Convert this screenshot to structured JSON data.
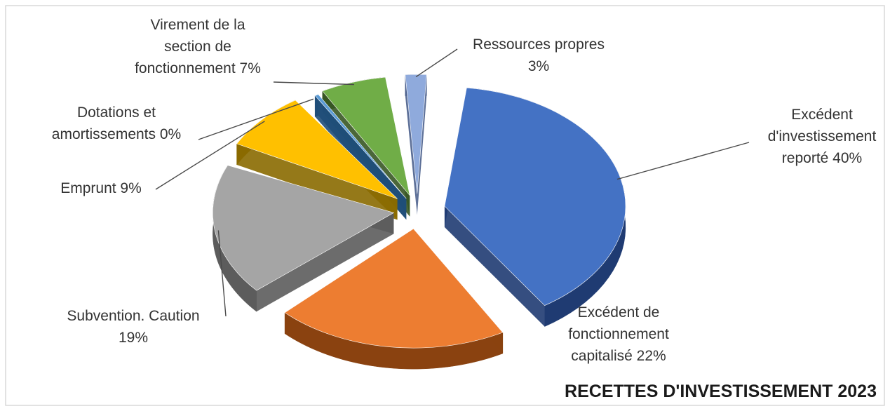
{
  "chart_data": {
    "type": "pie",
    "title": "RECETTES D'INVESTISSEMENT 2023",
    "slices": [
      {
        "label_lines": [
          "Excédent",
          "d'investissement",
          "reporté 40%"
        ],
        "value": 40,
        "color": "#4472C4",
        "dark": "#1f3b72"
      },
      {
        "label_lines": [
          "Excédent de",
          "fonctionnement",
          "capitalisé 22%"
        ],
        "value": 22,
        "color": "#ED7D31",
        "dark": "#8a4210"
      },
      {
        "label_lines": [
          "Subvention. Caution",
          "19%"
        ],
        "value": 19,
        "color": "#A5A5A5",
        "dark": "#5c5c5c"
      },
      {
        "label_lines": [
          "Emprunt 9%"
        ],
        "value": 9,
        "color": "#FFC000",
        "dark": "#8a6a00"
      },
      {
        "label_lines": [
          "Dotations et",
          "amortissements 0%"
        ],
        "value": 0.4,
        "color": "#5B9BD5",
        "dark": "#1f4e79"
      },
      {
        "label_lines": [
          "Virement de la",
          "section de",
          "fonctionnement 7%"
        ],
        "value": 7,
        "color": "#70AD47",
        "dark": "#375623"
      },
      {
        "label_lines": [
          "Ressources propres",
          "3%"
        ],
        "value": 3,
        "color": "#8FAADC",
        "dark": "#4a5f8c"
      }
    ]
  }
}
